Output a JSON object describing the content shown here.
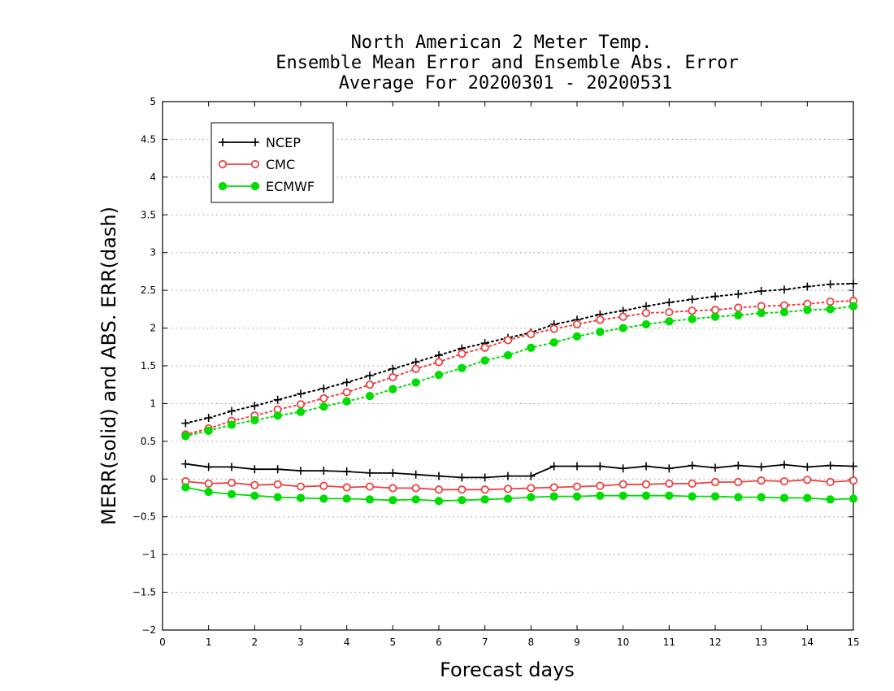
{
  "chart_data": {
    "type": "line",
    "title": [
      "North American 2 Meter Temp.",
      "Ensemble Mean Error and Ensemble Abs. Error",
      "Average For 20200301 - 20200531"
    ],
    "xlabel": "Forecast days",
    "ylabel": "MERR(solid) and ABS. ERR(dash)",
    "xlim": [
      0,
      15
    ],
    "ylim": [
      -2,
      5
    ],
    "x_ticks": [
      "0",
      "1",
      "2",
      "3",
      "4",
      "5",
      "6",
      "7",
      "8",
      "9",
      "10",
      "11",
      "12",
      "13",
      "14",
      "15"
    ],
    "y_ticks": [
      "−2",
      "−1.5",
      "−1",
      "−0.5",
      "0",
      "0.5",
      "1",
      "1.5",
      "2",
      "2.5",
      "3",
      "3.5",
      "4",
      "4.5",
      "5"
    ],
    "y_tick_values": [
      -2,
      -1.5,
      -1,
      -0.5,
      0,
      0.5,
      1,
      1.5,
      2,
      2.5,
      3,
      3.5,
      4,
      4.5,
      5
    ],
    "grid": "horizontal-dotted",
    "legend_position": "top-left",
    "x": [
      0.5,
      1,
      1.5,
      2,
      2.5,
      3,
      3.5,
      4,
      4.5,
      5,
      5.5,
      6,
      6.5,
      7,
      7.5,
      8,
      8.5,
      9,
      9.5,
      10,
      10.5,
      11,
      11.5,
      12,
      12.5,
      13,
      13.5,
      14,
      14.5,
      15
    ],
    "series": [
      {
        "name": "NCEP",
        "color": "#000000",
        "marker": "plus",
        "merr": [
          0.2,
          0.16,
          0.16,
          0.13,
          0.13,
          0.11,
          0.11,
          0.1,
          0.08,
          0.08,
          0.06,
          0.04,
          0.02,
          0.02,
          0.04,
          0.04,
          0.17,
          0.17,
          0.17,
          0.14,
          0.17,
          0.14,
          0.18,
          0.15,
          0.18,
          0.16,
          0.19,
          0.16,
          0.18,
          0.17
        ],
        "abserr": [
          0.74,
          0.81,
          0.9,
          0.97,
          1.05,
          1.13,
          1.2,
          1.28,
          1.37,
          1.46,
          1.55,
          1.64,
          1.73,
          1.8,
          1.87,
          1.94,
          2.05,
          2.11,
          2.18,
          2.23,
          2.29,
          2.34,
          2.38,
          2.42,
          2.45,
          2.49,
          2.51,
          2.55,
          2.58,
          2.59
        ]
      },
      {
        "name": "CMC",
        "color": "#f04040",
        "marker": "open-circle",
        "merr": [
          -0.03,
          -0.06,
          -0.05,
          -0.08,
          -0.07,
          -0.1,
          -0.09,
          -0.11,
          -0.1,
          -0.12,
          -0.12,
          -0.14,
          -0.14,
          -0.14,
          -0.13,
          -0.12,
          -0.11,
          -0.1,
          -0.09,
          -0.07,
          -0.07,
          -0.06,
          -0.06,
          -0.04,
          -0.04,
          -0.02,
          -0.03,
          -0.01,
          -0.04,
          -0.02
        ],
        "abserr": [
          0.59,
          0.67,
          0.77,
          0.84,
          0.92,
          0.99,
          1.07,
          1.15,
          1.25,
          1.35,
          1.46,
          1.55,
          1.66,
          1.74,
          1.84,
          1.92,
          1.99,
          2.05,
          2.11,
          2.15,
          2.2,
          2.21,
          2.23,
          2.24,
          2.27,
          2.29,
          2.3,
          2.32,
          2.35,
          2.36
        ]
      },
      {
        "name": "ECMWF",
        "color": "#00dd00",
        "marker": "filled-circle",
        "merr": [
          -0.11,
          -0.17,
          -0.2,
          -0.22,
          -0.24,
          -0.25,
          -0.26,
          -0.26,
          -0.27,
          -0.28,
          -0.27,
          -0.29,
          -0.28,
          -0.27,
          -0.26,
          -0.24,
          -0.23,
          -0.23,
          -0.22,
          -0.22,
          -0.22,
          -0.22,
          -0.23,
          -0.23,
          -0.24,
          -0.24,
          -0.25,
          -0.25,
          -0.27,
          -0.26
        ],
        "abserr": [
          0.57,
          0.64,
          0.72,
          0.78,
          0.84,
          0.89,
          0.96,
          1.03,
          1.1,
          1.19,
          1.28,
          1.38,
          1.47,
          1.57,
          1.64,
          1.74,
          1.81,
          1.89,
          1.95,
          2.0,
          2.05,
          2.09,
          2.12,
          2.15,
          2.17,
          2.2,
          2.21,
          2.24,
          2.25,
          2.29
        ]
      }
    ]
  }
}
